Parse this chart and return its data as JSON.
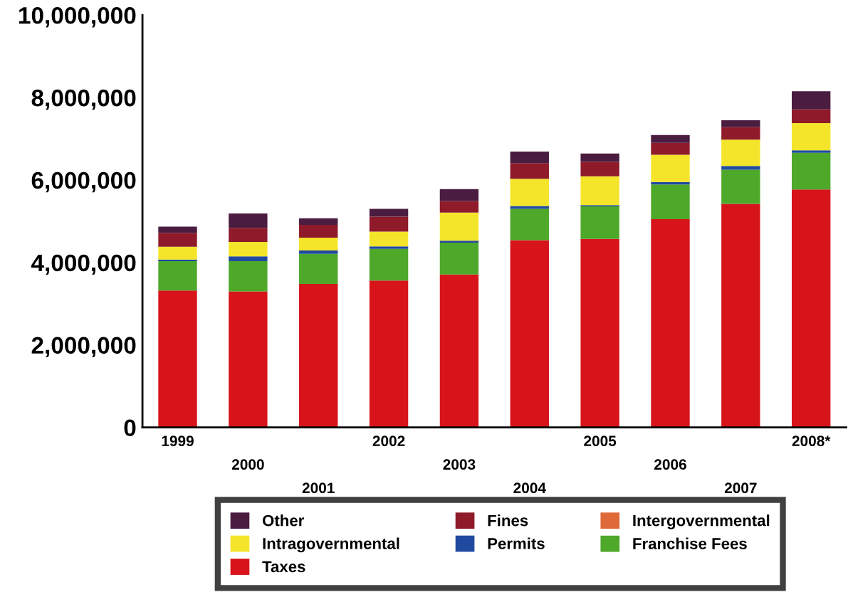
{
  "chart_data": {
    "type": "bar",
    "stacked": true,
    "categories": [
      "1999",
      "2000",
      "2001",
      "2002",
      "2003",
      "2004",
      "2005",
      "2006",
      "2007",
      "2008*"
    ],
    "series": [
      {
        "name": "Taxes",
        "color": "#d7141a",
        "values": [
          3320000,
          3300000,
          3480000,
          3560000,
          3710000,
          4540000,
          4570000,
          5050000,
          5420000,
          5770000
        ]
      },
      {
        "name": "Franchise Fees",
        "color": "#4ea82a",
        "values": [
          710000,
          730000,
          730000,
          770000,
          770000,
          760000,
          790000,
          840000,
          830000,
          890000
        ]
      },
      {
        "name": "Permits",
        "color": "#1f4aa0",
        "values": [
          40000,
          120000,
          80000,
          60000,
          50000,
          70000,
          30000,
          60000,
          90000,
          60000
        ]
      },
      {
        "name": "Intragovernmental",
        "color": "#f5e52a",
        "values": [
          310000,
          350000,
          310000,
          360000,
          680000,
          660000,
          700000,
          660000,
          640000,
          660000
        ]
      },
      {
        "name": "Intergovernmental",
        "color": "#e0693a",
        "values": [
          0,
          0,
          0,
          0,
          0,
          0,
          0,
          0,
          0,
          0
        ]
      },
      {
        "name": "Fines",
        "color": "#8e1a2a",
        "values": [
          340000,
          340000,
          310000,
          360000,
          280000,
          380000,
          350000,
          290000,
          300000,
          330000
        ]
      },
      {
        "name": "Other",
        "color": "#4a1c40",
        "values": [
          150000,
          350000,
          160000,
          190000,
          290000,
          280000,
          200000,
          190000,
          170000,
          440000
        ]
      }
    ],
    "ylim": [
      0,
      10000000
    ],
    "yticks": [
      {
        "value": 0,
        "label": "0"
      },
      {
        "value": 2000000,
        "label": "2,000,000"
      },
      {
        "value": 4000000,
        "label": "4,000,000"
      },
      {
        "value": 6000000,
        "label": "6,000,000"
      },
      {
        "value": 8000000,
        "label": "8,000,000"
      },
      {
        "value": 10000000,
        "label": "10,000,000"
      }
    ],
    "legend": "bottom",
    "grid": false
  }
}
